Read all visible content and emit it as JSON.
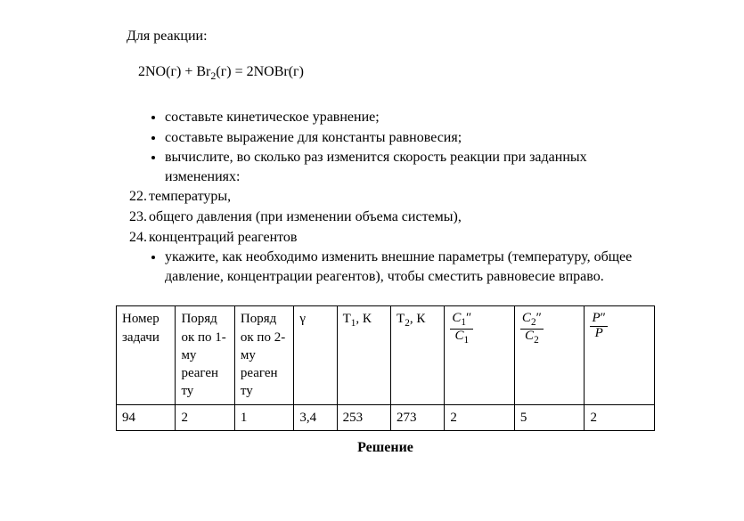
{
  "intro": "Для реакции:",
  "equation_parts": {
    "p1": "2NO(г) + Br",
    "sub1": "2",
    "p2": "(г) = 2NOBr(г)"
  },
  "bullets_a": [
    "составьте кинетическое уравнение;",
    "составьте выражение для константы равновесия;",
    "вычислите, во сколько раз изменится скорость реакции при заданных изменениях:"
  ],
  "numbered": [
    {
      "n": "22.",
      "t": "температуры,"
    },
    {
      "n": "23.",
      "t": "общего давления (при изменении объема системы),"
    },
    {
      "n": "24.",
      "t": "концентраций реагентов"
    }
  ],
  "bullets_b": [
    "укажите, как необходимо изменить внешние параметры (температуру, общее давление, концентрации реагентов), чтобы сместить равновесие вправо."
  ],
  "table": {
    "headers": {
      "c1": "Номер задачи",
      "c2": "Поряд ок по 1-му реаген ту",
      "c3": "Поряд ок по 2-му реаген ту",
      "c4": "γ",
      "c5_a": "T",
      "c5_sub": "1",
      "c5_b": ", К",
      "c6_a": "T",
      "c6_sub": "2",
      "c6_b": ", К",
      "frac1": {
        "num_sym": "C",
        "num_sub": "1",
        "num_sup": "″",
        "den_sym": "C",
        "den_sub": "1"
      },
      "frac2": {
        "num_sym": "C",
        "num_sub": "2",
        "num_sup": "″",
        "den_sym": "C",
        "den_sub": "2"
      },
      "frac3": {
        "num_sym": "P",
        "num_sup": "″",
        "den_sym": "P"
      }
    },
    "row": {
      "c1": "94",
      "c2": "2",
      "c3": "1",
      "c4": "3,4",
      "c5": "253",
      "c6": "273",
      "c7": "2",
      "c8": "5",
      "c9": "2"
    }
  },
  "solution_label": "Решение"
}
